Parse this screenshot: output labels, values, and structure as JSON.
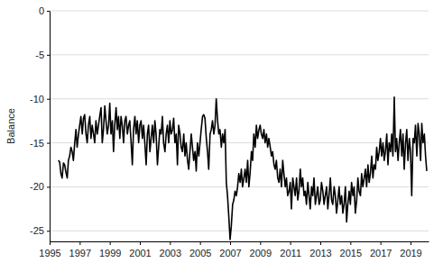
{
  "chart_data": {
    "type": "line",
    "y_label": "Balance",
    "color": "#000000",
    "grid": true,
    "xlim": [
      1995,
      2020.2
    ],
    "xticks": [
      1995,
      1997,
      1999,
      2001,
      2003,
      2005,
      2007,
      2009,
      2011,
      2013,
      2015,
      2017,
      2019
    ],
    "ylim": [
      -26.2,
      0
    ],
    "yticks": [
      0,
      -5,
      -10,
      -15,
      -20,
      -25
    ],
    "x": [
      1995.58,
      1995.67,
      1995.75,
      1995.83,
      1995.92,
      1996,
      1996.08,
      1996.17,
      1996.25,
      1996.33,
      1996.42,
      1996.5,
      1996.58,
      1996.67,
      1996.75,
      1996.83,
      1996.92,
      1997,
      1997.08,
      1997.17,
      1997.25,
      1997.33,
      1997.42,
      1997.5,
      1997.58,
      1997.67,
      1997.75,
      1997.83,
      1997.92,
      1998,
      1998.08,
      1998.17,
      1998.25,
      1998.33,
      1998.42,
      1998.5,
      1998.58,
      1998.67,
      1998.75,
      1998.83,
      1998.92,
      1999,
      1999.08,
      1999.17,
      1999.25,
      1999.33,
      1999.42,
      1999.5,
      1999.58,
      1999.67,
      1999.75,
      1999.83,
      1999.92,
      2000,
      2000.08,
      2000.17,
      2000.25,
      2000.33,
      2000.42,
      2000.5,
      2000.58,
      2000.67,
      2000.75,
      2000.83,
      2000.92,
      2001,
      2001.08,
      2001.17,
      2001.25,
      2001.33,
      2001.42,
      2001.5,
      2001.58,
      2001.67,
      2001.75,
      2001.83,
      2001.92,
      2002,
      2002.08,
      2002.17,
      2002.25,
      2002.33,
      2002.42,
      2002.5,
      2002.58,
      2002.67,
      2002.75,
      2002.83,
      2002.92,
      2003,
      2003.08,
      2003.17,
      2003.25,
      2003.33,
      2003.42,
      2003.5,
      2003.58,
      2003.67,
      2003.75,
      2003.83,
      2003.92,
      2004,
      2004.08,
      2004.17,
      2004.25,
      2004.33,
      2004.42,
      2004.5,
      2004.58,
      2004.67,
      2004.75,
      2004.83,
      2004.92,
      2005,
      2005.08,
      2005.17,
      2005.25,
      2005.33,
      2005.42,
      2005.5,
      2005.58,
      2005.67,
      2005.75,
      2005.83,
      2005.92,
      2006,
      2006.08,
      2006.17,
      2006.25,
      2006.33,
      2006.42,
      2006.5,
      2006.58,
      2006.67,
      2006.75,
      2006.83,
      2006.92,
      2007,
      2007.08,
      2007.17,
      2007.25,
      2007.33,
      2007.42,
      2007.5,
      2007.58,
      2007.67,
      2007.75,
      2007.83,
      2007.92,
      2008,
      2008.08,
      2008.17,
      2008.25,
      2008.33,
      2008.42,
      2008.5,
      2008.58,
      2008.67,
      2008.75,
      2008.83,
      2008.92,
      2009,
      2009.08,
      2009.17,
      2009.25,
      2009.33,
      2009.42,
      2009.5,
      2009.58,
      2009.67,
      2009.75,
      2009.83,
      2009.92,
      2010,
      2010.08,
      2010.17,
      2010.25,
      2010.33,
      2010.42,
      2010.5,
      2010.58,
      2010.67,
      2010.75,
      2010.83,
      2010.92,
      2011,
      2011.08,
      2011.17,
      2011.25,
      2011.33,
      2011.42,
      2011.5,
      2011.58,
      2011.67,
      2011.75,
      2011.83,
      2011.92,
      2012,
      2012.08,
      2012.17,
      2012.25,
      2012.33,
      2012.42,
      2012.5,
      2012.58,
      2012.67,
      2012.75,
      2012.83,
      2012.92,
      2013,
      2013.08,
      2013.17,
      2013.25,
      2013.33,
      2013.42,
      2013.5,
      2013.58,
      2013.67,
      2013.75,
      2013.83,
      2013.92,
      2014,
      2014.08,
      2014.17,
      2014.25,
      2014.33,
      2014.42,
      2014.5,
      2014.58,
      2014.67,
      2014.75,
      2014.83,
      2014.92,
      2015,
      2015.08,
      2015.17,
      2015.25,
      2015.33,
      2015.42,
      2015.5,
      2015.58,
      2015.67,
      2015.75,
      2015.83,
      2015.92,
      2016,
      2016.08,
      2016.17,
      2016.25,
      2016.33,
      2016.42,
      2016.5,
      2016.58,
      2016.67,
      2016.75,
      2016.83,
      2016.92,
      2017,
      2017.08,
      2017.17,
      2017.25,
      2017.33,
      2017.42,
      2017.5,
      2017.58,
      2017.67,
      2017.75,
      2017.83,
      2017.92,
      2018,
      2018.08,
      2018.17,
      2018.25,
      2018.33,
      2018.42,
      2018.5,
      2018.58,
      2018.67,
      2018.75,
      2018.83,
      2018.92,
      2019,
      2019.08,
      2019.17,
      2019.25,
      2019.33,
      2019.42,
      2019.5,
      2019.58,
      2019.67,
      2019.75,
      2019.83,
      2019.92,
      2020,
      2020.08
    ],
    "values": [
      -17,
      -17.2,
      -18.5,
      -19,
      -17.3,
      -17.5,
      -18.3,
      -19,
      -17,
      -16.5,
      -15.5,
      -16,
      -17,
      -15,
      -13.5,
      -15.5,
      -14,
      -13,
      -12,
      -14,
      -12.2,
      -11.8,
      -14,
      -15,
      -13,
      -12,
      -14.5,
      -13,
      -14,
      -15,
      -12.5,
      -14,
      -13,
      -12,
      -11,
      -15,
      -13.5,
      -10.8,
      -12.5,
      -14,
      -13,
      -10.5,
      -14,
      -12.5,
      -16,
      -13,
      -11,
      -13.5,
      -12,
      -14.5,
      -12,
      -13,
      -15,
      -12.5,
      -12,
      -14,
      -13,
      -12.5,
      -15,
      -17.5,
      -13.5,
      -12,
      -14,
      -12.5,
      -15,
      -13,
      -12.5,
      -14.5,
      -13,
      -15,
      -17.5,
      -14,
      -13,
      -16,
      -14.5,
      -13,
      -15,
      -12.5,
      -14,
      -17.5,
      -15.5,
      -13.5,
      -14,
      -12,
      -15,
      -16,
      -14,
      -13,
      -15,
      -12.5,
      -14,
      -13.5,
      -12.2,
      -15,
      -14,
      -17.5,
      -13,
      -14,
      -15.5,
      -16,
      -14,
      -16.5,
      -15,
      -17,
      -18,
      -16,
      -14,
      -15.5,
      -17,
      -16,
      -18.2,
      -15,
      -16.5,
      -15,
      -13.5,
      -12,
      -11.8,
      -12.2,
      -14.5,
      -16,
      -18,
      -14,
      -13.5,
      -12.5,
      -14,
      -13,
      -10,
      -12.5,
      -14,
      -13.5,
      -15.5,
      -14,
      -15,
      -13.5,
      -19.5,
      -21,
      -23.5,
      -26,
      -24.5,
      -22,
      -21.5,
      -20.5,
      -21,
      -20,
      -18.5,
      -19.5,
      -18,
      -20,
      -19,
      -18,
      -19.5,
      -17,
      -20,
      -18.5,
      -16,
      -17,
      -14,
      -15.5,
      -13,
      -14.5,
      -13.5,
      -13,
      -14,
      -14.5,
      -13.5,
      -15,
      -14,
      -15.5,
      -14.5,
      -15.5,
      -16.5,
      -16,
      -17.5,
      -18,
      -17,
      -19,
      -19.5,
      -18,
      -20,
      -17,
      -18.5,
      -20,
      -19,
      -21,
      -20.5,
      -19.5,
      -22.5,
      -19,
      -20,
      -21,
      -19,
      -21.5,
      -20.5,
      -18,
      -20,
      -19,
      -21,
      -20.5,
      -22,
      -19.5,
      -21,
      -22.5,
      -20,
      -21,
      -19,
      -22,
      -21,
      -20,
      -22,
      -21.5,
      -19.5,
      -20.5,
      -22,
      -21,
      -20,
      -22.5,
      -21,
      -19,
      -21.5,
      -22,
      -20,
      -21,
      -23,
      -21.5,
      -20,
      -22,
      -21,
      -23,
      -22,
      -20,
      -24,
      -22,
      -20.5,
      -22,
      -19.5,
      -21,
      -20,
      -23,
      -21.5,
      -19,
      -20.5,
      -21,
      -18.5,
      -20,
      -19,
      -18,
      -20,
      -17.5,
      -19.5,
      -18.5,
      -16.5,
      -19,
      -17.5,
      -18,
      -15.5,
      -17,
      -16,
      -14.5,
      -16.5,
      -15,
      -17,
      -16,
      -14,
      -17.5,
      -15,
      -16,
      -14,
      -16.5,
      -9.8,
      -16,
      -14.5,
      -17,
      -15,
      -13.5,
      -16.5,
      -14,
      -18,
      -15,
      -13.5,
      -17,
      -14.5,
      -16,
      -21,
      -14.5,
      -15,
      -13,
      -16.5,
      -12.8,
      -14,
      -17,
      -12.8,
      -15,
      -14,
      -16.5,
      -18.2
    ]
  }
}
